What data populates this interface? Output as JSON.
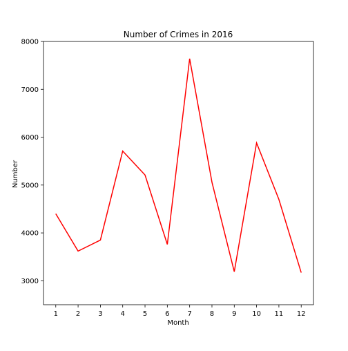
{
  "chart_data": {
    "type": "line",
    "title": "Number of Crimes in 2016",
    "xlabel": "Month",
    "ylabel": "Number",
    "x": [
      1,
      2,
      3,
      4,
      5,
      6,
      7,
      8,
      9,
      10,
      11,
      12
    ],
    "series": [
      {
        "values": [
          4400,
          3620,
          3850,
          5710,
          5210,
          3760,
          7640,
          5060,
          3190,
          5880,
          4700,
          3170
        ],
        "color": "#ff0000"
      }
    ],
    "xlim": [
      0.45,
      12.55
    ],
    "ylim": [
      2500,
      8000
    ],
    "yticks": [
      3000,
      4000,
      5000,
      6000,
      7000,
      8000
    ],
    "xticks": [
      1,
      2,
      3,
      4,
      5,
      6,
      7,
      8,
      9,
      10,
      11,
      12
    ],
    "grid": false
  }
}
